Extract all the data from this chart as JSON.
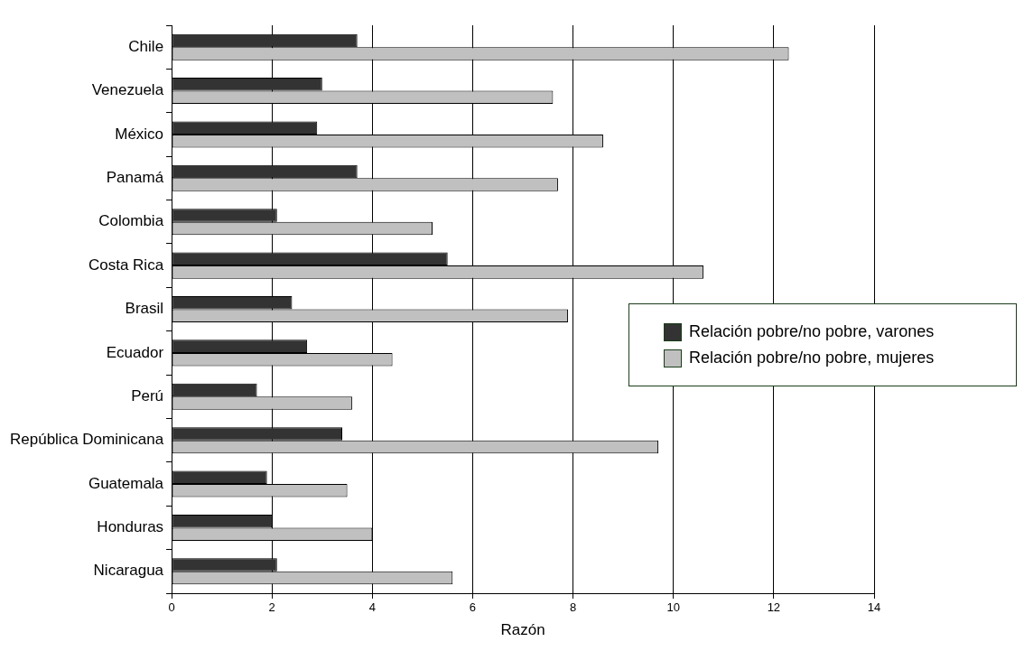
{
  "chart_data": {
    "type": "bar",
    "orientation": "horizontal",
    "xlabel": "Razón",
    "categories": [
      "Chile",
      "Venezuela",
      "México",
      "Panamá",
      "Colombia",
      "Costa Rica",
      "Brasil",
      "Ecuador",
      "Perú",
      "República Dominicana",
      "Guatemala",
      "Honduras",
      "Nicaragua"
    ],
    "series": [
      {
        "name": "Relación pobre/no pobre, varones",
        "color": "#333333",
        "values": [
          3.7,
          3.0,
          2.9,
          3.7,
          2.1,
          5.5,
          2.4,
          2.7,
          1.7,
          3.4,
          1.9,
          2.0,
          2.1
        ]
      },
      {
        "name": "Relación pobre/no pobre, mujeres",
        "color": "#c0c0c0",
        "values": [
          12.3,
          7.6,
          8.6,
          7.7,
          5.2,
          10.6,
          7.9,
          4.4,
          3.6,
          9.7,
          3.5,
          4.0,
          5.6
        ]
      }
    ],
    "xlim": [
      0,
      14
    ],
    "xticks": [
      0,
      2,
      4,
      6,
      8,
      10,
      12,
      14
    ],
    "grid": "x",
    "legend": "right"
  }
}
